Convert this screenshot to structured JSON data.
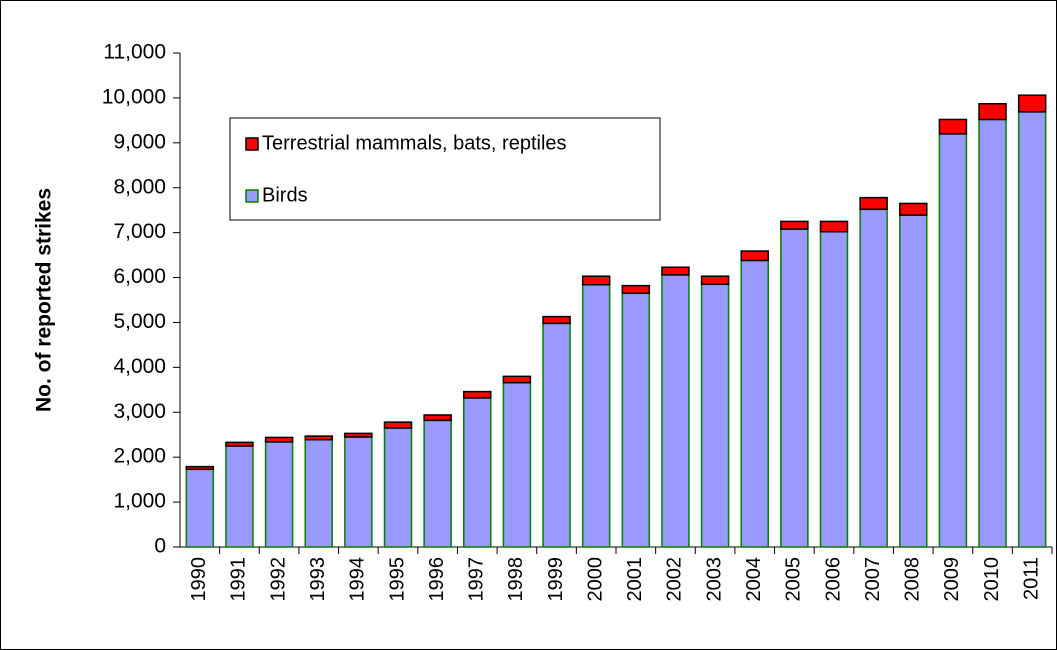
{
  "chart_data": {
    "type": "stacked_bar",
    "y_label": "No. of reported strikes",
    "categories": [
      "1990",
      "1991",
      "1992",
      "1993",
      "1994",
      "1995",
      "1996",
      "1997",
      "1998",
      "1999",
      "2000",
      "2001",
      "2002",
      "2003",
      "2004",
      "2005",
      "2006",
      "2007",
      "2008",
      "2009",
      "2010",
      "2011"
    ],
    "series": [
      {
        "name": "Birds",
        "color": "#9999ff",
        "values": [
          1730,
          2250,
          2340,
          2390,
          2450,
          2650,
          2820,
          3320,
          3660,
          4980,
          5840,
          5650,
          6060,
          5850,
          6380,
          7080,
          7020,
          7520,
          7390,
          9200,
          9520,
          9690
        ]
      },
      {
        "name": "Terrestrial mammals, bats, reptiles",
        "color": "#ff0000",
        "values": [
          60,
          80,
          100,
          80,
          80,
          130,
          120,
          140,
          140,
          150,
          190,
          170,
          170,
          180,
          210,
          170,
          230,
          260,
          260,
          320,
          350,
          370
        ]
      }
    ],
    "ylim": [
      0,
      11000
    ],
    "yticks": [
      0,
      {
        "value": 1000,
        "label": "1,000"
      },
      {
        "value": 2000,
        "label": "2,000"
      },
      {
        "value": 3000,
        "label": "3,000"
      },
      {
        "value": 4000,
        "label": "4,000"
      },
      {
        "value": 5000,
        "label": "5,000"
      },
      {
        "value": 6000,
        "label": "6,000"
      },
      {
        "value": 7000,
        "label": "7,000"
      },
      {
        "value": 8000,
        "label": "8,000"
      },
      {
        "value": 9000,
        "label": "9,000"
      },
      {
        "value": 10000,
        "label": "10,000"
      },
      {
        "value": 11000,
        "label": "11,000"
      }
    ],
    "legend": "upper left"
  }
}
